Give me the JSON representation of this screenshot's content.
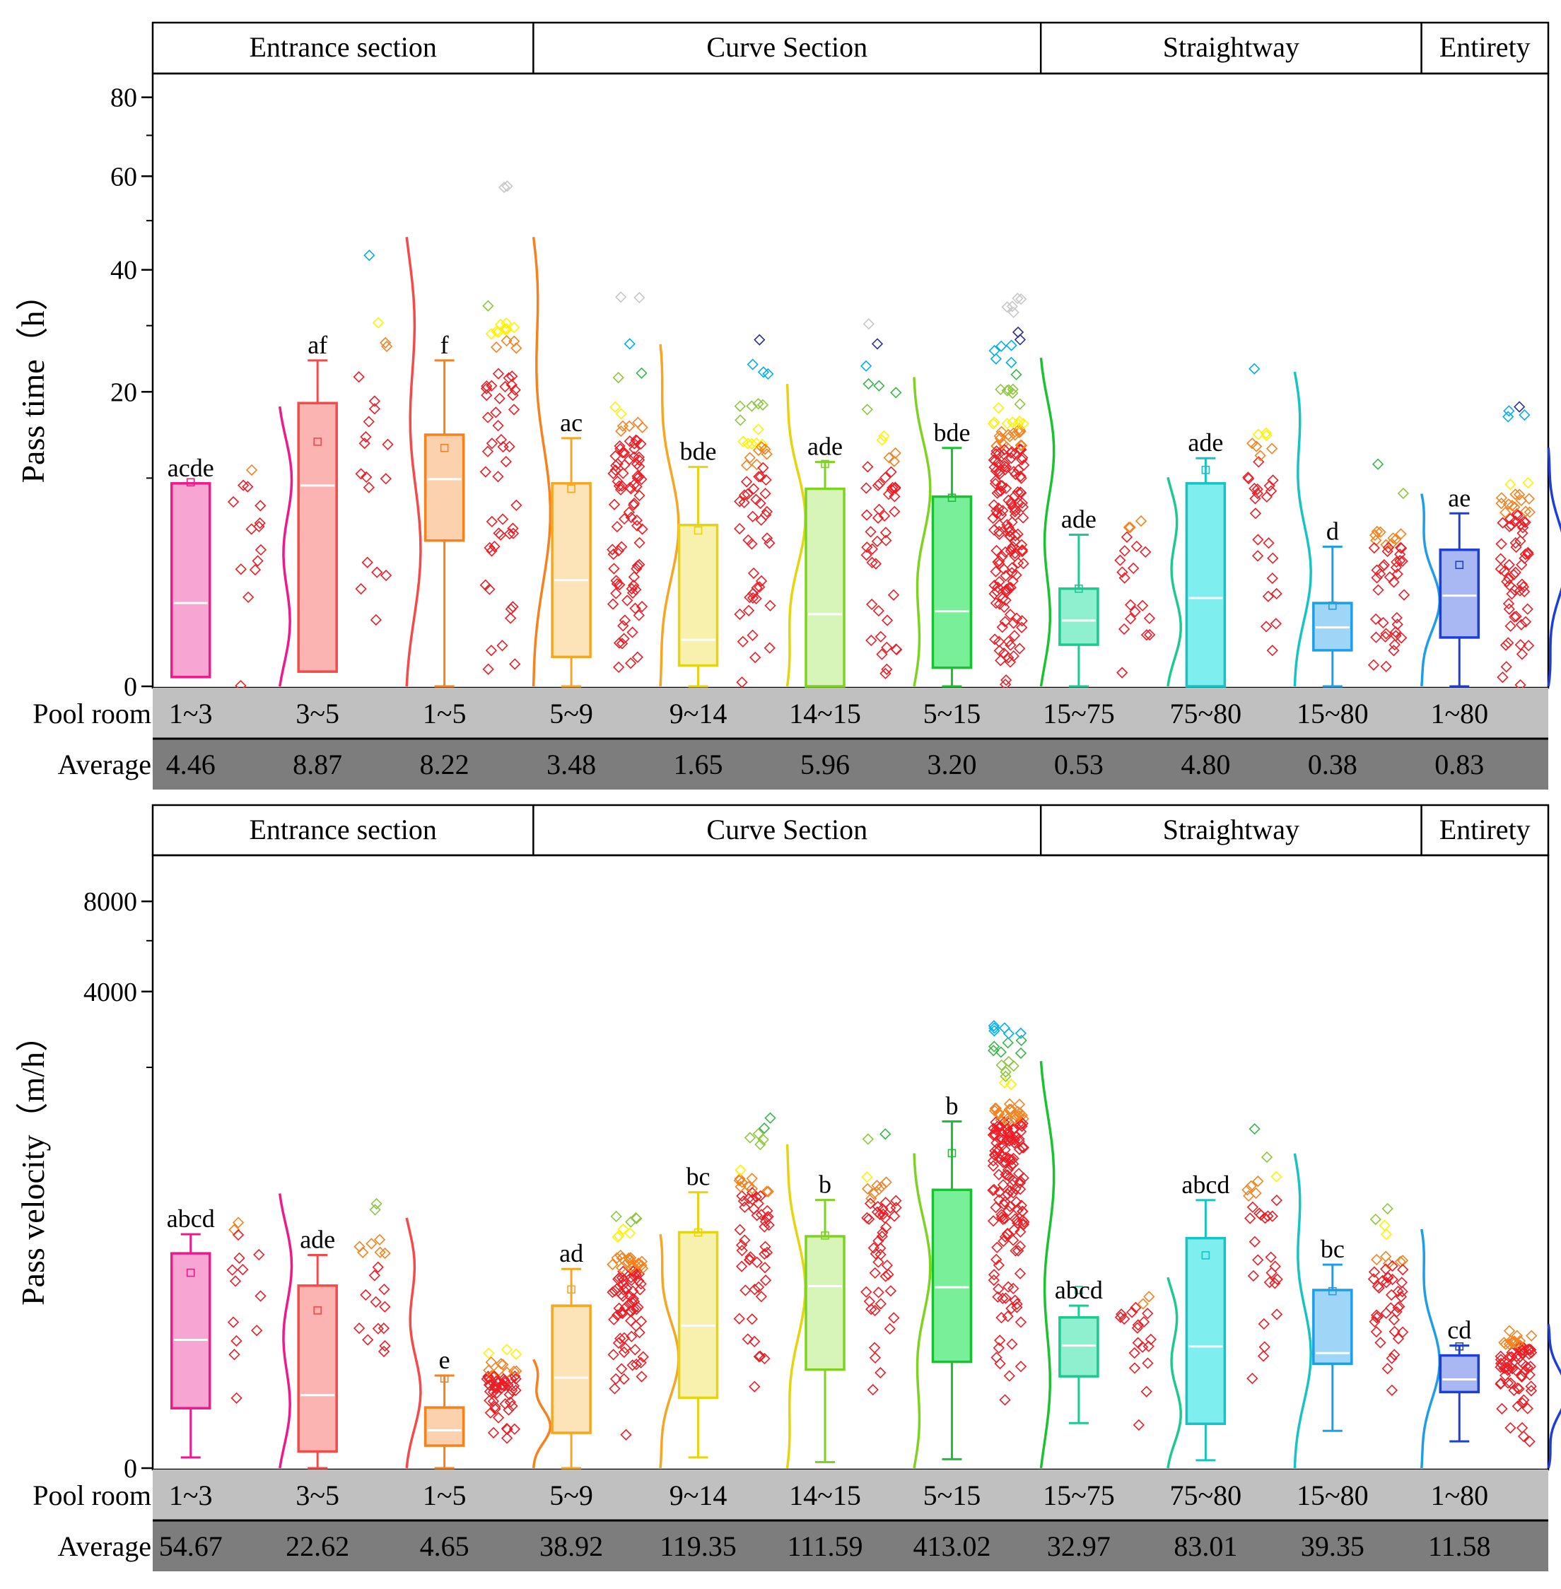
{
  "chart_data": [
    {
      "type": "box",
      "id": "time",
      "ylabel": "Pass time（h）",
      "yticks": [
        "0",
        "20",
        "40",
        "60",
        "80"
      ],
      "yscale": "sqrt",
      "ylim": [
        0,
        85
      ],
      "sections": [
        {
          "label": "Entrance section",
          "span": 3
        },
        {
          "label": "Curve Section",
          "span": 4
        },
        {
          "label": "Straightway",
          "span": 3
        },
        {
          "label": "Entirety",
          "span": 1
        }
      ],
      "row_labels": {
        "pool": "Pool room",
        "avg": "Average"
      },
      "groups": [
        {
          "pool": "1~3",
          "avg": "4.46",
          "letter": "acde",
          "color": "#ee1a8c",
          "fill": "#f7a5d3",
          "q1": 0.02,
          "median": 1.6,
          "q3": 9.5,
          "wlo": 0.02,
          "whi": 9.5,
          "mean": 9.6
        },
        {
          "pool": "3~5",
          "avg": "8.87",
          "letter": "af",
          "color": "#f44a4a",
          "fill": "#fbb4b2",
          "q1": 0.05,
          "median": 9.3,
          "q3": 18.5,
          "wlo": 0.05,
          "whi": 24.5,
          "mean": 13.8
        },
        {
          "pool": "1~5",
          "avg": "8.22",
          "letter": "f",
          "color": "#f5821f",
          "fill": "#fcd1ae",
          "q1": 4.9,
          "median": 9.9,
          "q3": 14.6,
          "wlo": 0,
          "whi": 24.5,
          "mean": 13.1
        },
        {
          "pool": "5~9",
          "avg": "3.48",
          "letter": "ac",
          "color": "#f5a623",
          "fill": "#fde3b8",
          "q1": 0.2,
          "median": 2.6,
          "q3": 9.5,
          "wlo": 0,
          "whi": 14.2,
          "mean": 9.0
        },
        {
          "pool": "9~14",
          "avg": "1.65",
          "letter": "bde",
          "color": "#e6d40e",
          "fill": "#f8f1ad",
          "q1": 0.1,
          "median": 0.5,
          "q3": 6.0,
          "wlo": 0,
          "whi": 11.1,
          "mean": 5.6
        },
        {
          "pool": "14~15",
          "avg": "5.96",
          "letter": "ade",
          "color": "#7ed321",
          "fill": "#d7f5b8",
          "q1": 0,
          "median": 1.2,
          "q3": 9.0,
          "wlo": 0,
          "whi": 11.6,
          "mean": 11.4
        },
        {
          "pool": "5~15",
          "avg": "3.20",
          "letter": "bde",
          "color": "#19c32f",
          "fill": "#79ef9a",
          "q1": 0.08,
          "median": 1.3,
          "q3": 8.3,
          "wlo": 0,
          "whi": 13.1,
          "mean": 8.2
        },
        {
          "pool": "15~75",
          "avg": "0.53",
          "letter": "ade",
          "color": "#1ec891",
          "fill": "#8ff0d0",
          "q1": 0.4,
          "median": 1.0,
          "q3": 2.2,
          "wlo": 0,
          "whi": 5.3,
          "mean": 2.2
        },
        {
          "pool": "75~80",
          "avg": "4.80",
          "letter": "ade",
          "color": "#17c3c3",
          "fill": "#7eeeee",
          "q1": 0,
          "median": 1.8,
          "q3": 9.5,
          "wlo": 0,
          "whi": 12.0,
          "mean": 10.8
        },
        {
          "pool": "15~80",
          "avg": "0.38",
          "letter": "d",
          "color": "#1f9ee8",
          "fill": "#9fd5f7",
          "q1": 0.3,
          "median": 0.8,
          "q3": 1.6,
          "wlo": 0,
          "whi": 4.5,
          "mean": 1.5
        },
        {
          "pool": "1~80",
          "avg": "0.83",
          "letter": "ae",
          "color": "#1f3ed6",
          "fill": "#a9b8f3",
          "q1": 0.55,
          "median": 1.9,
          "q3": 4.3,
          "wlo": 0,
          "whi": 6.9,
          "mean": 3.4
        }
      ]
    },
    {
      "type": "box",
      "id": "vel",
      "ylabel": "Pass velocity（m/h）",
      "yticks": [
        "0",
        "4000",
        "8000"
      ],
      "yscale": "pow0.25",
      "ylim": [
        0,
        9500
      ],
      "sections": [
        {
          "label": "Entrance section",
          "span": 3
        },
        {
          "label": "Curve Section",
          "span": 4
        },
        {
          "label": "Straightway",
          "span": 3
        },
        {
          "label": "Entirety",
          "span": 1
        }
      ],
      "row_labels": {
        "pool": "Pool room",
        "avg": "Average"
      },
      "groups": [
        {
          "pool": "1~3",
          "avg": "54.67",
          "letter": "abcd",
          "color": "#ee1a8c",
          "fill": "#f7a5d3",
          "q1": 1.0,
          "median": 21,
          "q3": 165,
          "wlo": 0.001,
          "whi": 232,
          "mean": 113
        },
        {
          "pool": "3~5",
          "avg": "22.62",
          "letter": "ade",
          "color": "#f44a4a",
          "fill": "#fbb4b2",
          "q1": 0.006,
          "median": 2.2,
          "q3": 86,
          "wlo": 0,
          "whi": 160,
          "mean": 48
        },
        {
          "pool": "1~5",
          "avg": "4.65",
          "letter": "e",
          "color": "#f5821f",
          "fill": "#fcd1ae",
          "q1": 0.02,
          "median": 0.16,
          "q3": 1.05,
          "wlo": 0,
          "whi": 5.7,
          "mean": 5
        },
        {
          "pool": "5~9",
          "avg": "38.92",
          "letter": "ad",
          "color": "#f5a623",
          "fill": "#fde3b8",
          "q1": 0.12,
          "median": 5.2,
          "q3": 54,
          "wlo": 0,
          "whi": 122,
          "mean": 79
        },
        {
          "pool": "9~14",
          "avg": "119.35",
          "letter": "bc",
          "color": "#e6d40e",
          "fill": "#f8f1ad",
          "q1": 1.9,
          "median": 32,
          "q3": 240,
          "wlo": 0.001,
          "whi": 449,
          "mean": 239
        },
        {
          "pool": "14~15",
          "avg": "111.59",
          "letter": "b",
          "color": "#7ed321",
          "fill": "#d7f5b8",
          "q1": 7.3,
          "median": 85,
          "q3": 224,
          "wlo": 0.0001,
          "whi": 401,
          "mean": 227
        },
        {
          "pool": "5~15",
          "avg": "413.02",
          "letter": "b",
          "color": "#19c32f",
          "fill": "#79ef9a",
          "q1": 9.9,
          "median": 83,
          "q3": 465,
          "wlo": 0.0005,
          "whi": 1120,
          "mean": 763
        },
        {
          "pool": "15~75",
          "avg": "32.97",
          "letter": "abcd",
          "color": "#1ec891",
          "fill": "#8ff0d0",
          "q1": 5.5,
          "median": 17.5,
          "q3": 40,
          "wlo": 0.32,
          "whi": 54,
          "mean": 78
        },
        {
          "pool": "75~80",
          "avg": "83.01",
          "letter": "abcd",
          "color": "#17c3c3",
          "fill": "#7eeeee",
          "q1": 0.3,
          "median": 17,
          "q3": 217,
          "wlo": 0.0003,
          "whi": 400,
          "mean": 159
        },
        {
          "pool": "15~80",
          "avg": "39.35",
          "letter": "bc",
          "color": "#1f9ee8",
          "fill": "#9fd5f7",
          "q1": 9.2,
          "median": 13.6,
          "q3": 78,
          "wlo": 0.15,
          "whi": 133,
          "mean": 76
        },
        {
          "pool": "1~80",
          "avg": "11.58",
          "letter": "cd",
          "color": "#1f3ed6",
          "fill": "#a9b8f3",
          "q1": 2.6,
          "median": 4.8,
          "q3": 12.5,
          "wlo": 0.04,
          "whi": 17.5,
          "mean": 17
        }
      ]
    }
  ],
  "scatter_palette": [
    "#ee1c24",
    "#f58220",
    "#fff200",
    "#8dc63f",
    "#39b54a",
    "#00aeef",
    "#2e3192",
    "#c7c7c7"
  ]
}
